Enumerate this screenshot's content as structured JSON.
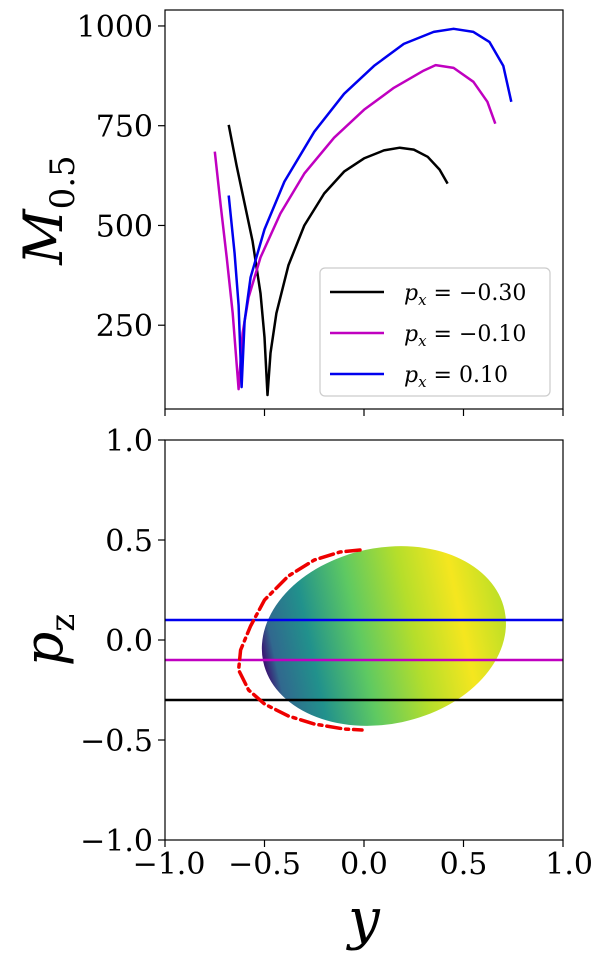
{
  "chart_data": [
    {
      "type": "line",
      "ylabel_main": "M",
      "ylabel_sub": "0.5",
      "xlim": [
        -1.0,
        1.0
      ],
      "ylim": [
        40,
        1040
      ],
      "yticks": [
        250,
        500,
        750,
        1000
      ],
      "ytick_labels": [
        "250",
        "500",
        "750",
        "1000"
      ],
      "xticks": [
        -1.0,
        -0.5,
        0.0,
        0.5,
        1.0
      ],
      "grid": false,
      "legend_position": "lower-right",
      "series": [
        {
          "name": "p_x = −0.30",
          "legend_math": "p",
          "legend_sub": "x",
          "legend_rest": " = −0.30",
          "color": "#000000",
          "points": [
            [
              -0.68,
              752
            ],
            [
              -0.64,
              650
            ],
            [
              -0.6,
              555
            ],
            [
              -0.56,
              460
            ],
            [
              -0.52,
              330
            ],
            [
              -0.5,
              220
            ],
            [
              -0.485,
              75
            ],
            [
              -0.47,
              180
            ],
            [
              -0.44,
              280
            ],
            [
              -0.38,
              400
            ],
            [
              -0.3,
              500
            ],
            [
              -0.2,
              580
            ],
            [
              -0.1,
              635
            ],
            [
              0.0,
              668
            ],
            [
              0.1,
              688
            ],
            [
              0.18,
              695
            ],
            [
              0.25,
              690
            ],
            [
              0.32,
              672
            ],
            [
              0.38,
              640
            ],
            [
              0.42,
              605
            ]
          ]
        },
        {
          "name": "p_x = −0.10",
          "legend_math": "p",
          "legend_sub": "x",
          "legend_rest": " = −0.10",
          "color": "#c000c0",
          "points": [
            [
              -0.75,
              685
            ],
            [
              -0.72,
              550
            ],
            [
              -0.69,
              420
            ],
            [
              -0.66,
              280
            ],
            [
              -0.63,
              90
            ],
            [
              -0.61,
              230
            ],
            [
              -0.58,
              320
            ],
            [
              -0.52,
              420
            ],
            [
              -0.42,
              530
            ],
            [
              -0.3,
              630
            ],
            [
              -0.15,
              720
            ],
            [
              0.0,
              790
            ],
            [
              0.15,
              845
            ],
            [
              0.3,
              888
            ],
            [
              0.36,
              902
            ],
            [
              0.45,
              895
            ],
            [
              0.55,
              860
            ],
            [
              0.62,
              810
            ],
            [
              0.66,
              755
            ]
          ]
        },
        {
          "name": "p_x = 0.10",
          "legend_math": "p",
          "legend_sub": "x",
          "legend_rest": " = 0.10",
          "color": "#0000ee",
          "points": [
            [
              -0.68,
              575
            ],
            [
              -0.65,
              430
            ],
            [
              -0.63,
              300
            ],
            [
              -0.615,
              95
            ],
            [
              -0.6,
              260
            ],
            [
              -0.57,
              370
            ],
            [
              -0.5,
              490
            ],
            [
              -0.4,
              610
            ],
            [
              -0.25,
              735
            ],
            [
              -0.1,
              830
            ],
            [
              0.05,
              900
            ],
            [
              0.2,
              955
            ],
            [
              0.35,
              985
            ],
            [
              0.45,
              993
            ],
            [
              0.55,
              985
            ],
            [
              0.63,
              960
            ],
            [
              0.7,
              900
            ],
            [
              0.74,
              810
            ]
          ]
        }
      ]
    },
    {
      "type": "heatmap",
      "ylabel_main": "p",
      "ylabel_sub": "z",
      "xlabel": "y",
      "xlim": [
        -1.0,
        1.0
      ],
      "ylim": [
        -1.0,
        1.0
      ],
      "xticks": [
        -1.0,
        -0.5,
        0.0,
        0.5,
        1.0
      ],
      "xtick_labels": [
        "−1.0",
        "−0.5",
        "0.0",
        "0.5",
        "1.0"
      ],
      "yticks": [
        -1.0,
        -0.5,
        0.0,
        0.5,
        1.0
      ],
      "ytick_labels": [
        "−1.0",
        "−0.5",
        "0.0",
        "0.5",
        "1.0"
      ],
      "grid": false,
      "colormap": "viridis",
      "ellipse": {
        "cx": 0.1,
        "cy": 0.02,
        "rx": 0.62,
        "ry": 0.44,
        "rotation_deg": 12
      },
      "hlines": [
        {
          "y": 0.1,
          "color": "#0000ee"
        },
        {
          "y": -0.1,
          "color": "#c000c0"
        },
        {
          "y": -0.3,
          "color": "#000000"
        }
      ],
      "boundary_curve": {
        "color": "#ee0000",
        "style": "dash-dot",
        "points": [
          [
            -0.02,
            0.45
          ],
          [
            -0.12,
            0.44
          ],
          [
            -0.25,
            0.4
          ],
          [
            -0.38,
            0.32
          ],
          [
            -0.5,
            0.2
          ],
          [
            -0.57,
            0.07
          ],
          [
            -0.62,
            -0.05
          ],
          [
            -0.63,
            -0.15
          ],
          [
            -0.58,
            -0.25
          ],
          [
            -0.5,
            -0.32
          ],
          [
            -0.38,
            -0.38
          ],
          [
            -0.25,
            -0.42
          ],
          [
            -0.1,
            -0.445
          ],
          [
            -0.01,
            -0.45
          ]
        ]
      }
    }
  ]
}
